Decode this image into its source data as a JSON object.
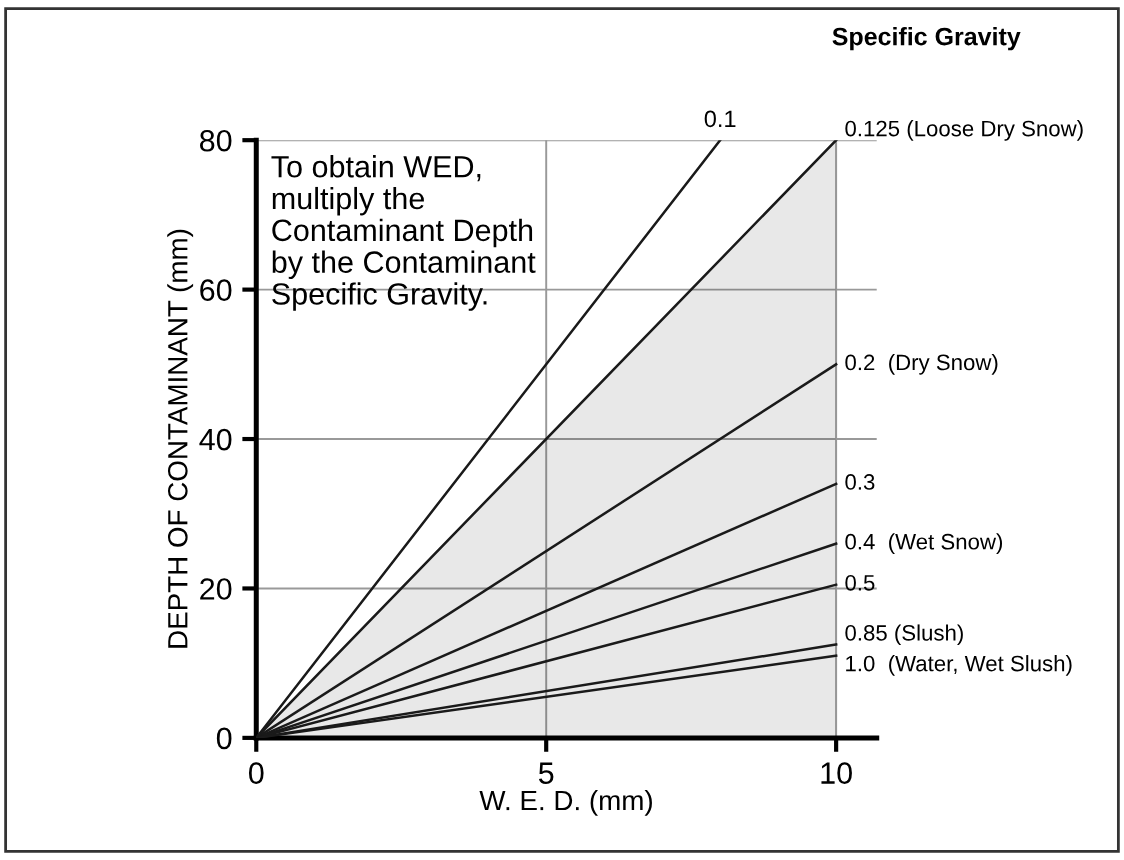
{
  "chart_data": {
    "type": "line",
    "xlabel": "W. E. D. (mm)",
    "ylabel": "DEPTH OF CONTAMINANT (mm)",
    "xlim": [
      0,
      10.7
    ],
    "ylim": [
      0,
      80
    ],
    "xticks": [
      0,
      5,
      10
    ],
    "yticks": [
      0,
      20,
      40,
      60,
      80
    ],
    "grid": true,
    "legend": false,
    "marker": "none",
    "line_style": "solid",
    "annotations": [
      "To obtain WED,\nmultiply the\nContaminant Depth\nby the Contaminant\nSpecific Gravity.",
      "Specific Gravity"
    ],
    "series": [
      {
        "name": "0.1",
        "color": "#1a1a1a",
        "x": [
          0,
          8
        ],
        "values": [
          0,
          80
        ]
      },
      {
        "name": "0.125 (Loose Dry Snow)",
        "color": "#1a1a1a",
        "x": [
          0,
          10
        ],
        "values": [
          0,
          80
        ],
        "lower": [
          0,
          0
        ],
        "upper": [
          0,
          80
        ]
      },
      {
        "name": "0.2  (Dry Snow)",
        "color": "#1a1a1a",
        "x": [
          0,
          10
        ],
        "values": [
          0,
          50
        ]
      },
      {
        "name": "0.3",
        "color": "#1a1a1a",
        "x": [
          0,
          10
        ],
        "values": [
          0,
          34
        ]
      },
      {
        "name": "0.4  (Wet Snow)",
        "color": "#1a1a1a",
        "x": [
          0,
          10
        ],
        "values": [
          0,
          26
        ]
      },
      {
        "name": "0.5",
        "color": "#1a1a1a",
        "x": [
          0,
          10
        ],
        "values": [
          0,
          20.5
        ]
      },
      {
        "name": "0.85 (Slush)",
        "color": "#1a1a1a",
        "x": [
          0,
          10
        ],
        "values": [
          0,
          12.5
        ]
      },
      {
        "name": "1.0  (Water, Wet Slush)",
        "color": "#1a1a1a",
        "x": [
          0,
          10
        ],
        "values": [
          0,
          11
        ]
      }
    ]
  }
}
